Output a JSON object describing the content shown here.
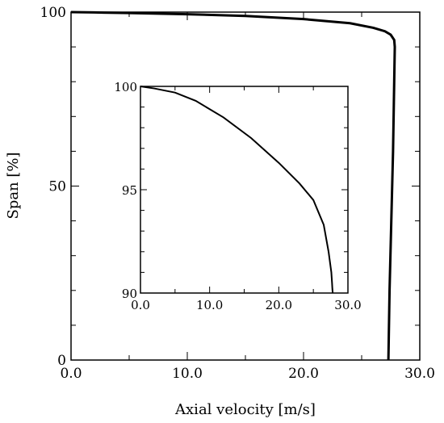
{
  "chart_data": [
    {
      "type": "line",
      "xlabel": "Axial velocity [m/s]",
      "ylabel": "Span [%]",
      "xlim": [
        0,
        30
      ],
      "ylim": [
        0,
        100
      ],
      "xticks": [
        "0.0",
        "10.0",
        "20.0",
        "30.0"
      ],
      "yticks": [
        "0",
        "50",
        "100"
      ],
      "grid": false,
      "series": [
        {
          "x": [
            27.3,
            27.4,
            27.55,
            27.7,
            27.8,
            27.85,
            27.8,
            27.5,
            27.0,
            26.0,
            24.0,
            20.0,
            15.0,
            10.0,
            5.0,
            2.0,
            0.0
          ],
          "y": [
            0,
            20,
            40,
            60,
            80,
            90,
            92,
            93.5,
            94.5,
            95.5,
            96.8,
            98.0,
            98.9,
            99.4,
            99.75,
            99.9,
            100
          ]
        }
      ]
    },
    {
      "type": "line",
      "xlim": [
        0,
        30
      ],
      "ylim": [
        90,
        100
      ],
      "xticks": [
        "0.0",
        "10.0",
        "20.0",
        "30.0"
      ],
      "yticks": [
        "90",
        "95",
        "100"
      ],
      "grid": false,
      "series": [
        {
          "x": [
            0.0,
            2.0,
            5.0,
            8.0,
            12.0,
            16.0,
            20.0,
            23.0,
            25.0,
            26.5,
            27.2,
            27.6,
            27.7,
            27.75,
            27.8
          ],
          "y": [
            100,
            99.9,
            99.7,
            99.3,
            98.5,
            97.5,
            96.3,
            95.3,
            94.5,
            93.3,
            92.0,
            91.0,
            90.5,
            90.2,
            90.0
          ]
        }
      ]
    }
  ]
}
